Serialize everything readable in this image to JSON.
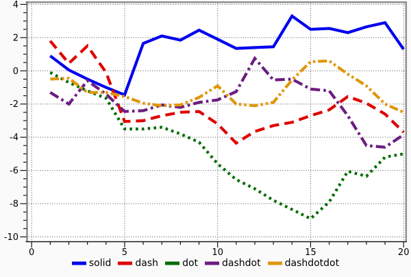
{
  "chart_data": {
    "type": "line",
    "title": "",
    "xlabel": "",
    "ylabel": "",
    "xlim": [
      -0.3,
      20.2
    ],
    "ylim": [
      -10.3,
      4.2
    ],
    "xticks": [
      0,
      5,
      10,
      15,
      20
    ],
    "yticks": [
      4,
      2,
      0,
      -2,
      -4,
      -6,
      -8,
      -10
    ],
    "x_minor_step": 1,
    "y_minor_step": 0.5,
    "grid": "dotted lines at major ticks",
    "legend_position": "bottom",
    "x": [
      1,
      2,
      3,
      4,
      5,
      6,
      7,
      8,
      9,
      10,
      11,
      12,
      13,
      14,
      15,
      16,
      17,
      18,
      19,
      20
    ],
    "series": [
      {
        "name": "solid",
        "line_style": "solid",
        "color": "#0000EE",
        "values": [
          0.9,
          0.05,
          -0.5,
          -1.0,
          -1.45,
          1.65,
          2.1,
          1.85,
          2.45,
          1.9,
          1.35,
          1.4,
          1.45,
          3.3,
          2.5,
          2.55,
          2.3,
          2.65,
          2.9,
          1.3
        ]
      },
      {
        "name": "dash",
        "line_style": "dash",
        "color": "#DF0000",
        "values": [
          1.8,
          0.45,
          1.5,
          -0.1,
          -3.05,
          -3.0,
          -2.7,
          -2.5,
          -2.45,
          -3.2,
          -4.35,
          -3.65,
          -3.3,
          -3.1,
          -2.7,
          -2.35,
          -1.55,
          -1.95,
          -2.6,
          -3.7
        ]
      },
      {
        "name": "dot",
        "line_style": "dot",
        "color": "#006B00",
        "values": [
          -0.1,
          -0.7,
          -1.2,
          -1.65,
          -3.5,
          -3.5,
          -3.4,
          -3.8,
          -4.3,
          -5.6,
          -6.55,
          -7.1,
          -7.8,
          -8.35,
          -8.9,
          -7.9,
          -6.05,
          -6.35,
          -5.2,
          -5.0
        ]
      },
      {
        "name": "dashdot",
        "line_style": "dashdot",
        "color": "#6C1D80",
        "values": [
          -1.3,
          -2.0,
          -0.6,
          -1.4,
          -2.45,
          -2.4,
          -2.05,
          -2.2,
          -1.9,
          -1.75,
          -1.25,
          0.75,
          -0.55,
          -0.5,
          -1.1,
          -1.2,
          -2.7,
          -4.5,
          -4.6,
          -3.85
        ]
      },
      {
        "name": "dashdotdot",
        "line_style": "dashdotdot",
        "color": "#E0960A",
        "values": [
          -0.5,
          -0.45,
          -1.3,
          -1.3,
          -1.55,
          -1.95,
          -2.1,
          -2.05,
          -1.6,
          -0.9,
          -2.0,
          -2.1,
          -1.9,
          -0.55,
          0.55,
          0.6,
          -0.2,
          -0.9,
          -2.0,
          -2.5
        ]
      }
    ]
  },
  "colors": {
    "background": "#fafafa",
    "plot_background": "#ffffff",
    "grid": "#333333",
    "frame_gray": "#8f8f8f",
    "axis_left": "#6e6e6e",
    "axis_bottom": "#1a1a1a",
    "tick": "#000000",
    "text": "#000000"
  }
}
